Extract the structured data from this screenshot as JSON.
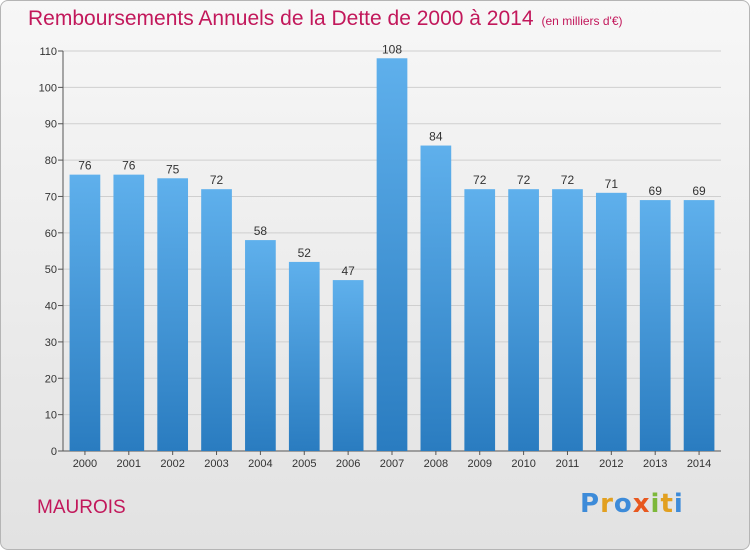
{
  "title": "Remboursements Annuels de la Dette de 2000 à 2014",
  "unit": "(en milliers d'€)",
  "town": "MAUROIS",
  "logo": "Proxiti",
  "colors": {
    "title": "#c2185b",
    "bar_top": "#5fb0ec",
    "bar_bottom": "#2a7cc0"
  },
  "chart_data": {
    "type": "bar",
    "title": "Remboursements Annuels de la Dette de 2000 à 2014",
    "categories": [
      "2000",
      "2001",
      "2002",
      "2003",
      "2004",
      "2005",
      "2006",
      "2007",
      "2008",
      "2009",
      "2010",
      "2011",
      "2012",
      "2013",
      "2014"
    ],
    "values": [
      76,
      76,
      75,
      72,
      58,
      52,
      47,
      108,
      84,
      72,
      72,
      72,
      71,
      69,
      69
    ],
    "ylim": [
      0,
      110
    ],
    "yticks": [
      0,
      10,
      20,
      30,
      40,
      50,
      60,
      70,
      80,
      90,
      100,
      110
    ],
    "grid": true,
    "data_labels": true
  }
}
